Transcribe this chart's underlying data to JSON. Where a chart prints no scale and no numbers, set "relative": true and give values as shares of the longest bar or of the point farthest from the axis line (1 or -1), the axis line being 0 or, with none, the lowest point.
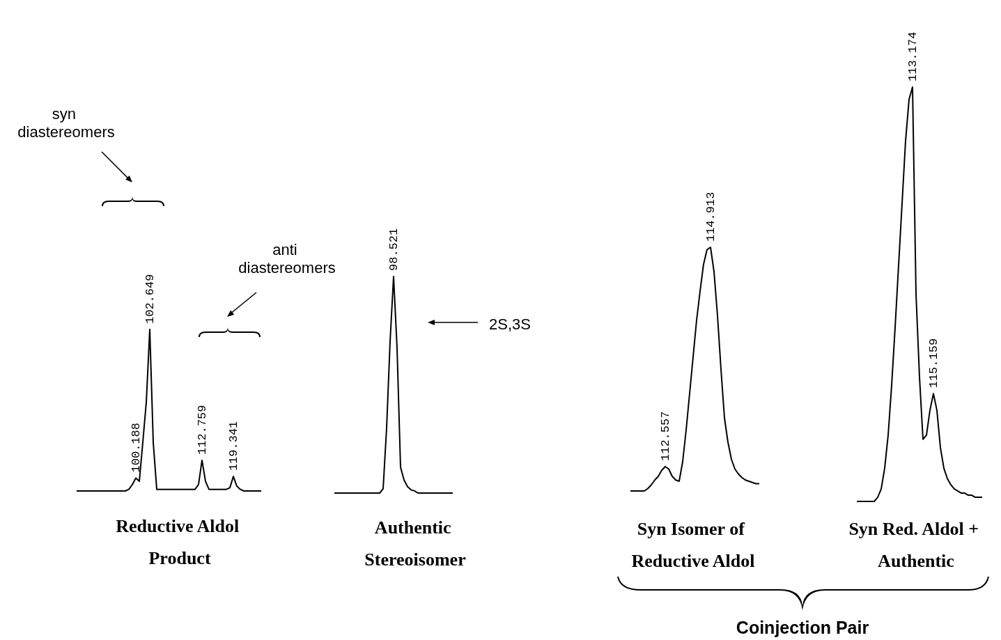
{
  "chart_data": [
    {
      "type": "line",
      "relative": true,
      "color": "#000000",
      "xlabel": "Reductive Aldol Product",
      "annotations": [
        "syn diastereomers",
        "anti diastereomers",
        {
          "text": "100.188",
          "y": 0.08
        },
        {
          "text": "102.649",
          "y": 1
        },
        {
          "text": "112.759",
          "y": 0.19
        },
        {
          "text": "119.341",
          "y": 0.09
        }
      ],
      "categories": [
        null,
        null,
        null,
        null,
        null,
        null,
        null,
        null,
        null,
        null,
        null,
        null,
        null,
        null,
        null,
        null,
        null,
        null,
        null,
        null,
        null,
        null,
        null,
        null,
        null,
        null,
        null,
        null,
        null,
        null,
        null,
        null,
        null,
        null,
        null,
        null,
        null,
        null,
        null,
        null,
        null,
        null,
        null,
        null,
        null,
        null,
        null,
        null,
        null,
        null,
        null,
        null,
        null,
        null
      ],
      "values": [
        0,
        0,
        0,
        0,
        0,
        0,
        0,
        0,
        0,
        0,
        0,
        0,
        0,
        0,
        0,
        0.01,
        0.04,
        0.08,
        0.06,
        0.3,
        0.55,
        1,
        0.3,
        0.01,
        0.01,
        0.01,
        0.01,
        0.01,
        0.01,
        0.01,
        0.01,
        0.01,
        0.01,
        0.01,
        0.01,
        0.04,
        0.19,
        0.06,
        0.01,
        0.01,
        0.01,
        0.01,
        0.01,
        0.01,
        0.02,
        0.09,
        0.03,
        0.01,
        0,
        0,
        0,
        0,
        0,
        0
      ]
    },
    {
      "type": "line",
      "relative": true,
      "color": "#000000",
      "xlabel": "Authentic Stereoisomer",
      "annotations": [
        "2S,3S",
        {
          "text": "98.521",
          "y": 1
        }
      ],
      "categories": [
        null,
        null,
        null,
        null,
        null,
        null,
        null,
        null,
        null,
        null,
        null,
        null,
        null,
        null,
        null,
        null,
        null,
        null,
        null,
        null,
        null,
        null,
        null,
        null,
        null,
        null,
        null,
        null,
        null,
        null,
        null,
        null,
        null,
        null,
        null
      ],
      "values": [
        0,
        0,
        0,
        0,
        0,
        0,
        0,
        0,
        0,
        0,
        0,
        0,
        0,
        0,
        0.02,
        0.3,
        0.7,
        1,
        0.67,
        0.12,
        0.06,
        0.03,
        0.015,
        0.01,
        0,
        0,
        0,
        0,
        0,
        0,
        0,
        0,
        0,
        0,
        0
      ]
    },
    {
      "type": "line",
      "relative": true,
      "color": "#000000",
      "xlabel": "Syn Isomer of Reductive Aldol",
      "annotations": [
        {
          "text": "112.557",
          "y": 0.1
        },
        {
          "text": "114.913",
          "y": 1
        }
      ],
      "categories": [
        null,
        null,
        null,
        null,
        null,
        null,
        null,
        null,
        null,
        null,
        null,
        null,
        null,
        null,
        null,
        null,
        null,
        null,
        null,
        null,
        null,
        null,
        null,
        null,
        null,
        null,
        null,
        null,
        null,
        null,
        null,
        null,
        null,
        null,
        null,
        null,
        null,
        null
      ],
      "values": [
        0,
        0,
        0,
        0,
        0,
        0.01,
        0.025,
        0.045,
        0.06,
        0.085,
        0.1,
        0.09,
        0.06,
        0.045,
        0.04,
        0.12,
        0.25,
        0.4,
        0.55,
        0.7,
        0.82,
        0.93,
        0.99,
        1,
        0.9,
        0.72,
        0.5,
        0.3,
        0.2,
        0.13,
        0.09,
        0.07,
        0.055,
        0.045,
        0.04,
        0.035,
        0.03,
        0.03
      ]
    },
    {
      "type": "line",
      "relative": true,
      "color": "#000000",
      "xlabel": "Syn Red. Aldol + Authentic",
      "annotations": [
        "Coinjection Pair",
        {
          "text": "113.174",
          "y": 1
        },
        {
          "text": "115.159",
          "y": 0.26
        }
      ],
      "categories": [
        null,
        null,
        null,
        null,
        null,
        null,
        null,
        null,
        null,
        null,
        null,
        null,
        null,
        null,
        null,
        null,
        null,
        null,
        null,
        null,
        null,
        null,
        null,
        null,
        null,
        null,
        null,
        null,
        null,
        null,
        null,
        null,
        null,
        null,
        null,
        null,
        null
      ],
      "values": [
        0,
        0,
        0,
        0,
        0,
        0,
        0.01,
        0.03,
        0.08,
        0.16,
        0.28,
        0.42,
        0.57,
        0.72,
        0.87,
        0.97,
        1,
        0.5,
        0.3,
        0.15,
        0.16,
        0.22,
        0.26,
        0.22,
        0.13,
        0.08,
        0.055,
        0.04,
        0.03,
        0.025,
        0.02,
        0.02,
        0.015,
        0.015,
        0.01,
        0.01,
        0.01
      ]
    }
  ]
}
